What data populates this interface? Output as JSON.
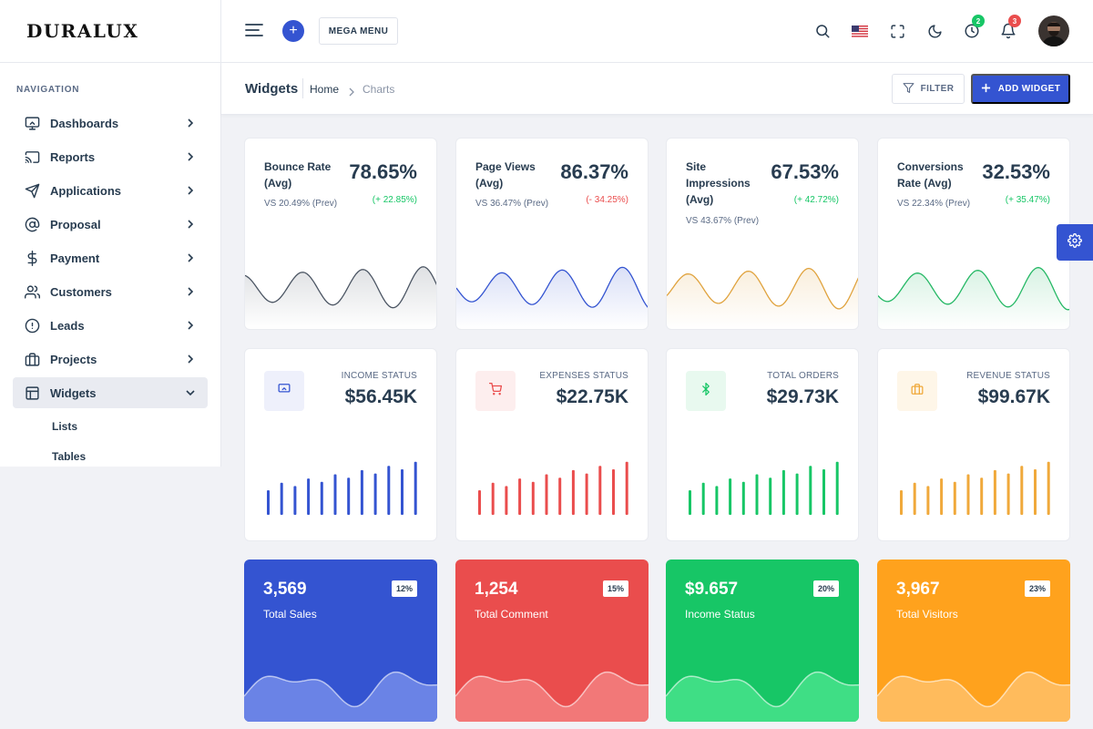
{
  "brand": {
    "name": "DURALUX"
  },
  "sidebar": {
    "caption": "NAVIGATION",
    "items": [
      {
        "label": "Dashboards",
        "icon": "monitor-icon"
      },
      {
        "label": "Reports",
        "icon": "cast-icon"
      },
      {
        "label": "Applications",
        "icon": "send-icon"
      },
      {
        "label": "Proposal",
        "icon": "at-sign-icon"
      },
      {
        "label": "Payment",
        "icon": "dollar-icon"
      },
      {
        "label": "Customers",
        "icon": "users-icon"
      },
      {
        "label": "Leads",
        "icon": "alert-circle-icon"
      },
      {
        "label": "Projects",
        "icon": "briefcase-icon"
      },
      {
        "label": "Widgets",
        "icon": "layout-icon",
        "active": true
      }
    ],
    "subitems": [
      {
        "label": "Lists"
      },
      {
        "label": "Tables"
      }
    ]
  },
  "header": {
    "mega_menu_label": "MEGA MENU",
    "notifications": {
      "timer_count": "2",
      "bell_count": "3"
    }
  },
  "page": {
    "title": "Widgets",
    "breadcrumb": {
      "home": "Home",
      "current": "Charts"
    },
    "filter_label": "FILTER",
    "add_label": "ADD WIDGET"
  },
  "stats": [
    {
      "title": "Bounce Rate (Avg)",
      "value": "78.65%",
      "change": "(+ 22.85%)",
      "prev": "VS 20.49% (Prev)",
      "color": "#4b5563",
      "change_color": "#17c666"
    },
    {
      "title": "Page Views (Avg)",
      "value": "86.37%",
      "change": "(- 34.25%)",
      "prev": "VS 36.47% (Prev)",
      "color": "#3454d1",
      "change_color": "#ea4d4d"
    },
    {
      "title": "Site Impressions (Avg)",
      "value": "67.53%",
      "change": "(+ 42.72%)",
      "prev": "VS 43.67% (Prev)",
      "color": "#e0a33e",
      "change_color": "#17c666"
    },
    {
      "title": "Conversions Rate (Avg)",
      "value": "32.53%",
      "change": "(+ 35.47%)",
      "prev": "VS 22.34% (Prev)",
      "color": "#25b865",
      "change_color": "#17c666"
    }
  ],
  "status": [
    {
      "label": "INCOME STATUS",
      "value": "$56.45K",
      "icon": "monitor-icon",
      "color": "#3454d1",
      "bg": "#eef0fb"
    },
    {
      "label": "EXPENSES STATUS",
      "value": "$22.75K",
      "icon": "cart-icon",
      "color": "#ea4d4d",
      "bg": "#fdeeee"
    },
    {
      "label": "TOTAL ORDERS",
      "value": "$29.73K",
      "icon": "bluetooth-icon",
      "color": "#17c666",
      "bg": "#e8f9ef"
    },
    {
      "label": "REVENUE STATUS",
      "value": "$99.67K",
      "icon": "briefcase-icon",
      "color": "#f0a93b",
      "bg": "#fef6e8"
    }
  ],
  "colored": [
    {
      "value": "3,569",
      "label": "Total Sales",
      "badge": "12%",
      "color": "#3454d1",
      "wave": "#6a83e6"
    },
    {
      "value": "1,254",
      "label": "Total Comment",
      "badge": "15%",
      "color": "#ea4d4d",
      "wave": "#f27878"
    },
    {
      "value": "$9.657",
      "label": "Income Status",
      "badge": "20%",
      "color": "#17c666",
      "wave": "#3fde85"
    },
    {
      "value": "3,967",
      "label": "Total Visitors",
      "badge": "23%",
      "color": "#ffa21d",
      "wave": "#ffbb5c"
    }
  ]
}
